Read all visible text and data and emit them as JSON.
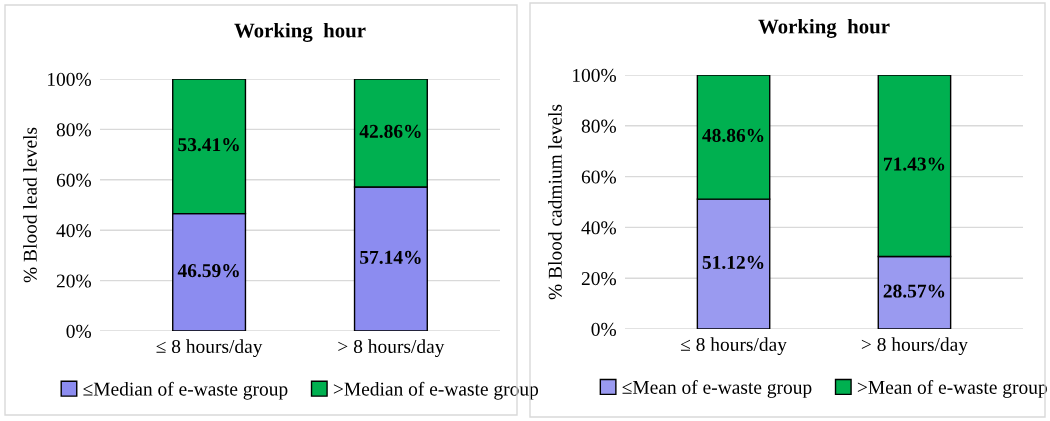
{
  "chart_data": [
    {
      "type": "bar",
      "title": "Working  hour",
      "ylabel": "% Blood lead levels",
      "categories": [
        "≤ 8 hours/day",
        "> 8 hours/day"
      ],
      "stacked": true,
      "ylim": [
        0,
        100
      ],
      "yticks": [
        {
          "value": 0,
          "label": "0%"
        },
        {
          "value": 20,
          "label": "20%"
        },
        {
          "value": 40,
          "label": "40%"
        },
        {
          "value": 60,
          "label": "60%"
        },
        {
          "value": 80,
          "label": "80%"
        },
        {
          "value": 100,
          "label": "100%"
        }
      ],
      "grid": "y",
      "legend": "bottom",
      "series": [
        {
          "name": "≤Median of e-waste group",
          "color": "#8c8cf0",
          "values": [
            46.59,
            57.14
          ],
          "value_labels": [
            "46.59%",
            "57.14%"
          ]
        },
        {
          "name": ">Median of e-waste group",
          "color": "#00b050",
          "values": [
            53.41,
            42.86
          ],
          "value_labels": [
            "53.41%",
            "42.86%"
          ]
        }
      ]
    },
    {
      "type": "bar",
      "title": "Working  hour",
      "ylabel": "% Blood cadmium levels",
      "categories": [
        "≤ 8 hours/day",
        "> 8 hours/day"
      ],
      "stacked": true,
      "ylim": [
        0,
        100
      ],
      "yticks": [
        {
          "value": 0,
          "label": "0%"
        },
        {
          "value": 20,
          "label": "20%"
        },
        {
          "value": 40,
          "label": "40%"
        },
        {
          "value": 60,
          "label": "60%"
        },
        {
          "value": 80,
          "label": "80%"
        },
        {
          "value": 100,
          "label": "100%"
        }
      ],
      "grid": "y",
      "legend": "bottom",
      "series": [
        {
          "name": "≤Mean of e-waste group",
          "color": "#9a9af0",
          "values": [
            51.12,
            28.57
          ],
          "value_labels": [
            "51.12%",
            "28.57%"
          ]
        },
        {
          "name": ">Mean of e-waste group",
          "color": "#00b050",
          "values": [
            48.86,
            71.43
          ],
          "value_labels": [
            "48.86%",
            "71.43%"
          ]
        }
      ]
    }
  ]
}
